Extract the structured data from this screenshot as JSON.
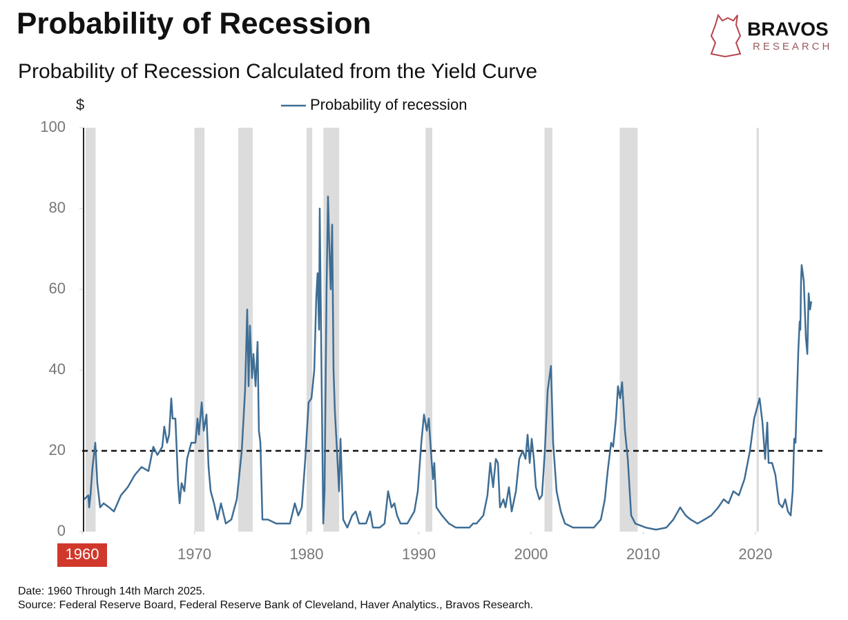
{
  "chart_data": {
    "type": "line",
    "title": "Probability of Recession",
    "subtitle": "Probability of Recession Calculated from the Yield Curve",
    "y_axis_label": "$",
    "brand": "BRAVOS",
    "brand_sub": "RESEARCH",
    "notes": [
      "Date: 1960 Through 14th March 2025.",
      "Source: Federal Reserve Board, Federal Reserve Bank of Cleveland, Haver Analytics., Bravos Research."
    ],
    "x": [
      1960.18,
      1960.55,
      1960.62,
      1960.74,
      1960.92,
      1961.17,
      1961.35,
      1961.6,
      1961.91,
      1962.4,
      1962.83,
      1963.45,
      1964.06,
      1964.68,
      1965.29,
      1965.91,
      1966.34,
      1966.71,
      1967.14,
      1967.32,
      1967.57,
      1967.75,
      1967.94,
      1968.06,
      1968.31,
      1968.55,
      1968.68,
      1968.86,
      1969.11,
      1969.35,
      1969.72,
      1970.09,
      1970.28,
      1970.4,
      1970.65,
      1970.83,
      1971.08,
      1971.26,
      1971.45,
      1971.75,
      1972.06,
      1972.37,
      1972.8,
      1973.29,
      1973.78,
      1974.22,
      1974.52,
      1974.71,
      1974.83,
      1974.95,
      1975.14,
      1975.26,
      1975.45,
      1975.63,
      1975.75,
      1975.88,
      1976.06,
      1976.55,
      1977.29,
      1977.91,
      1978.52,
      1978.95,
      1979.26,
      1979.57,
      1979.88,
      1980.18,
      1980.43,
      1980.68,
      1980.86,
      1980.98,
      1981.11,
      1981.17,
      1981.35,
      1981.48,
      1981.6,
      1981.78,
      1981.91,
      1982.03,
      1982.15,
      1982.28,
      1982.4,
      1982.52,
      1982.71,
      1982.89,
      1983.02,
      1983.26,
      1983.63,
      1984.06,
      1984.37,
      1984.68,
      1985.29,
      1985.66,
      1985.91,
      1986.52,
      1986.95,
      1987.26,
      1987.57,
      1987.82,
      1988.06,
      1988.37,
      1988.98,
      1989.6,
      1989.91,
      1990.22,
      1990.46,
      1990.71,
      1990.89,
      1991.08,
      1991.26,
      1991.38,
      1991.57,
      1992.06,
      1992.68,
      1993.29,
      1993.91,
      1994.52,
      1994.83,
      1995.14,
      1995.75,
      1996.12,
      1996.37,
      1996.62,
      1996.86,
      1997.05,
      1997.23,
      1997.54,
      1997.72,
      1998.03,
      1998.28,
      1998.65,
      1998.95,
      1999.26,
      1999.51,
      1999.69,
      1999.88,
      2000.06,
      2000.25,
      2000.43,
      2000.74,
      2000.98,
      2001.23,
      2001.48,
      2001.78,
      2001.97,
      2002.28,
      2002.65,
      2003.02,
      2003.75,
      2004.68,
      2005.6,
      2006.22,
      2006.58,
      2006.83,
      2007.14,
      2007.32,
      2007.57,
      2007.75,
      2007.94,
      2008.12,
      2008.37,
      2008.62,
      2008.92,
      2009.29,
      2010.22,
      2011.14,
      2012.06,
      2012.68,
      2013.29,
      2013.78,
      2014.22,
      2014.83,
      2015.45,
      2016.06,
      2016.68,
      2017.17,
      2017.6,
      2018.03,
      2018.52,
      2019.02,
      2019.51,
      2019.88,
      2020.37,
      2020.62,
      2020.86,
      2021.05,
      2021.17,
      2021.48,
      2021.78,
      2022.09,
      2022.4,
      2022.65,
      2022.89,
      2023.14,
      2023.32,
      2023.45,
      2023.57,
      2023.82,
      2023.94,
      2024.0,
      2024.06,
      2024.12,
      2024.31,
      2024.49,
      2024.62,
      2024.74,
      2024.86,
      2024.98
    ],
    "series": [
      {
        "name": "Probability of recession",
        "color": "#3e6d94",
        "values": [
          8,
          9,
          6,
          9,
          16,
          22,
          12,
          6,
          7,
          6,
          5,
          9,
          11,
          14,
          16,
          15,
          21,
          19,
          21,
          26,
          22,
          24,
          33,
          28,
          28,
          12,
          7,
          12,
          10,
          18,
          22,
          22,
          28,
          24,
          32,
          25,
          29,
          16,
          10,
          7,
          3,
          7,
          2,
          3,
          8,
          20,
          35,
          55,
          36,
          51,
          38,
          44,
          36,
          47,
          25,
          22,
          3,
          3,
          2,
          2,
          2,
          7,
          4,
          6,
          18,
          32,
          33,
          40,
          58,
          64,
          50,
          80,
          35,
          2,
          10,
          60,
          83,
          70,
          60,
          76,
          40,
          30,
          20,
          10,
          23,
          3,
          1,
          4,
          5,
          2,
          2,
          5,
          1,
          1,
          2,
          10,
          6,
          7,
          4,
          2,
          2,
          5,
          10,
          22,
          29,
          25,
          28,
          20,
          13,
          17,
          6,
          4,
          2,
          1,
          1,
          1,
          2,
          2,
          4,
          9,
          17,
          11,
          18,
          17,
          6,
          8,
          6,
          11,
          5,
          10,
          18,
          20,
          18,
          24,
          17,
          23,
          18,
          11,
          8,
          9,
          20,
          35,
          41,
          22,
          10,
          5,
          2,
          1,
          1,
          1,
          3,
          8,
          15,
          22,
          21,
          28,
          36,
          33,
          37,
          25,
          18,
          4,
          2,
          1,
          0.5,
          1,
          3,
          6,
          4,
          3,
          2,
          3,
          4,
          6,
          8,
          7,
          10,
          9,
          13,
          20,
          28,
          33,
          27,
          18,
          27,
          17,
          17,
          14,
          7,
          6,
          8,
          5,
          4,
          10,
          23,
          22,
          45,
          52,
          50,
          62,
          66,
          62,
          48,
          44,
          59,
          55,
          57
        ]
      }
    ],
    "recessions": [
      [
        1960.3,
        1961.2
      ],
      [
        1970.0,
        1970.9
      ],
      [
        1973.9,
        1975.2
      ],
      [
        1980.0,
        1980.5
      ],
      [
        1981.5,
        1982.9
      ],
      [
        1990.6,
        1991.2
      ],
      [
        2001.2,
        2001.9
      ],
      [
        2007.9,
        2009.5
      ],
      [
        2020.1,
        2020.3
      ]
    ],
    "recession_color": "#dcdcdc",
    "threshold": 20,
    "xlim": [
      1960,
      2026
    ],
    "ylim": [
      0,
      100
    ],
    "xticks": [
      1960,
      1970,
      1980,
      1990,
      2000,
      2010,
      2020
    ],
    "yticks": [
      0,
      20,
      40,
      60,
      80,
      100
    ],
    "first_xtick_highlight": "#d0382b",
    "legend": "top"
  }
}
